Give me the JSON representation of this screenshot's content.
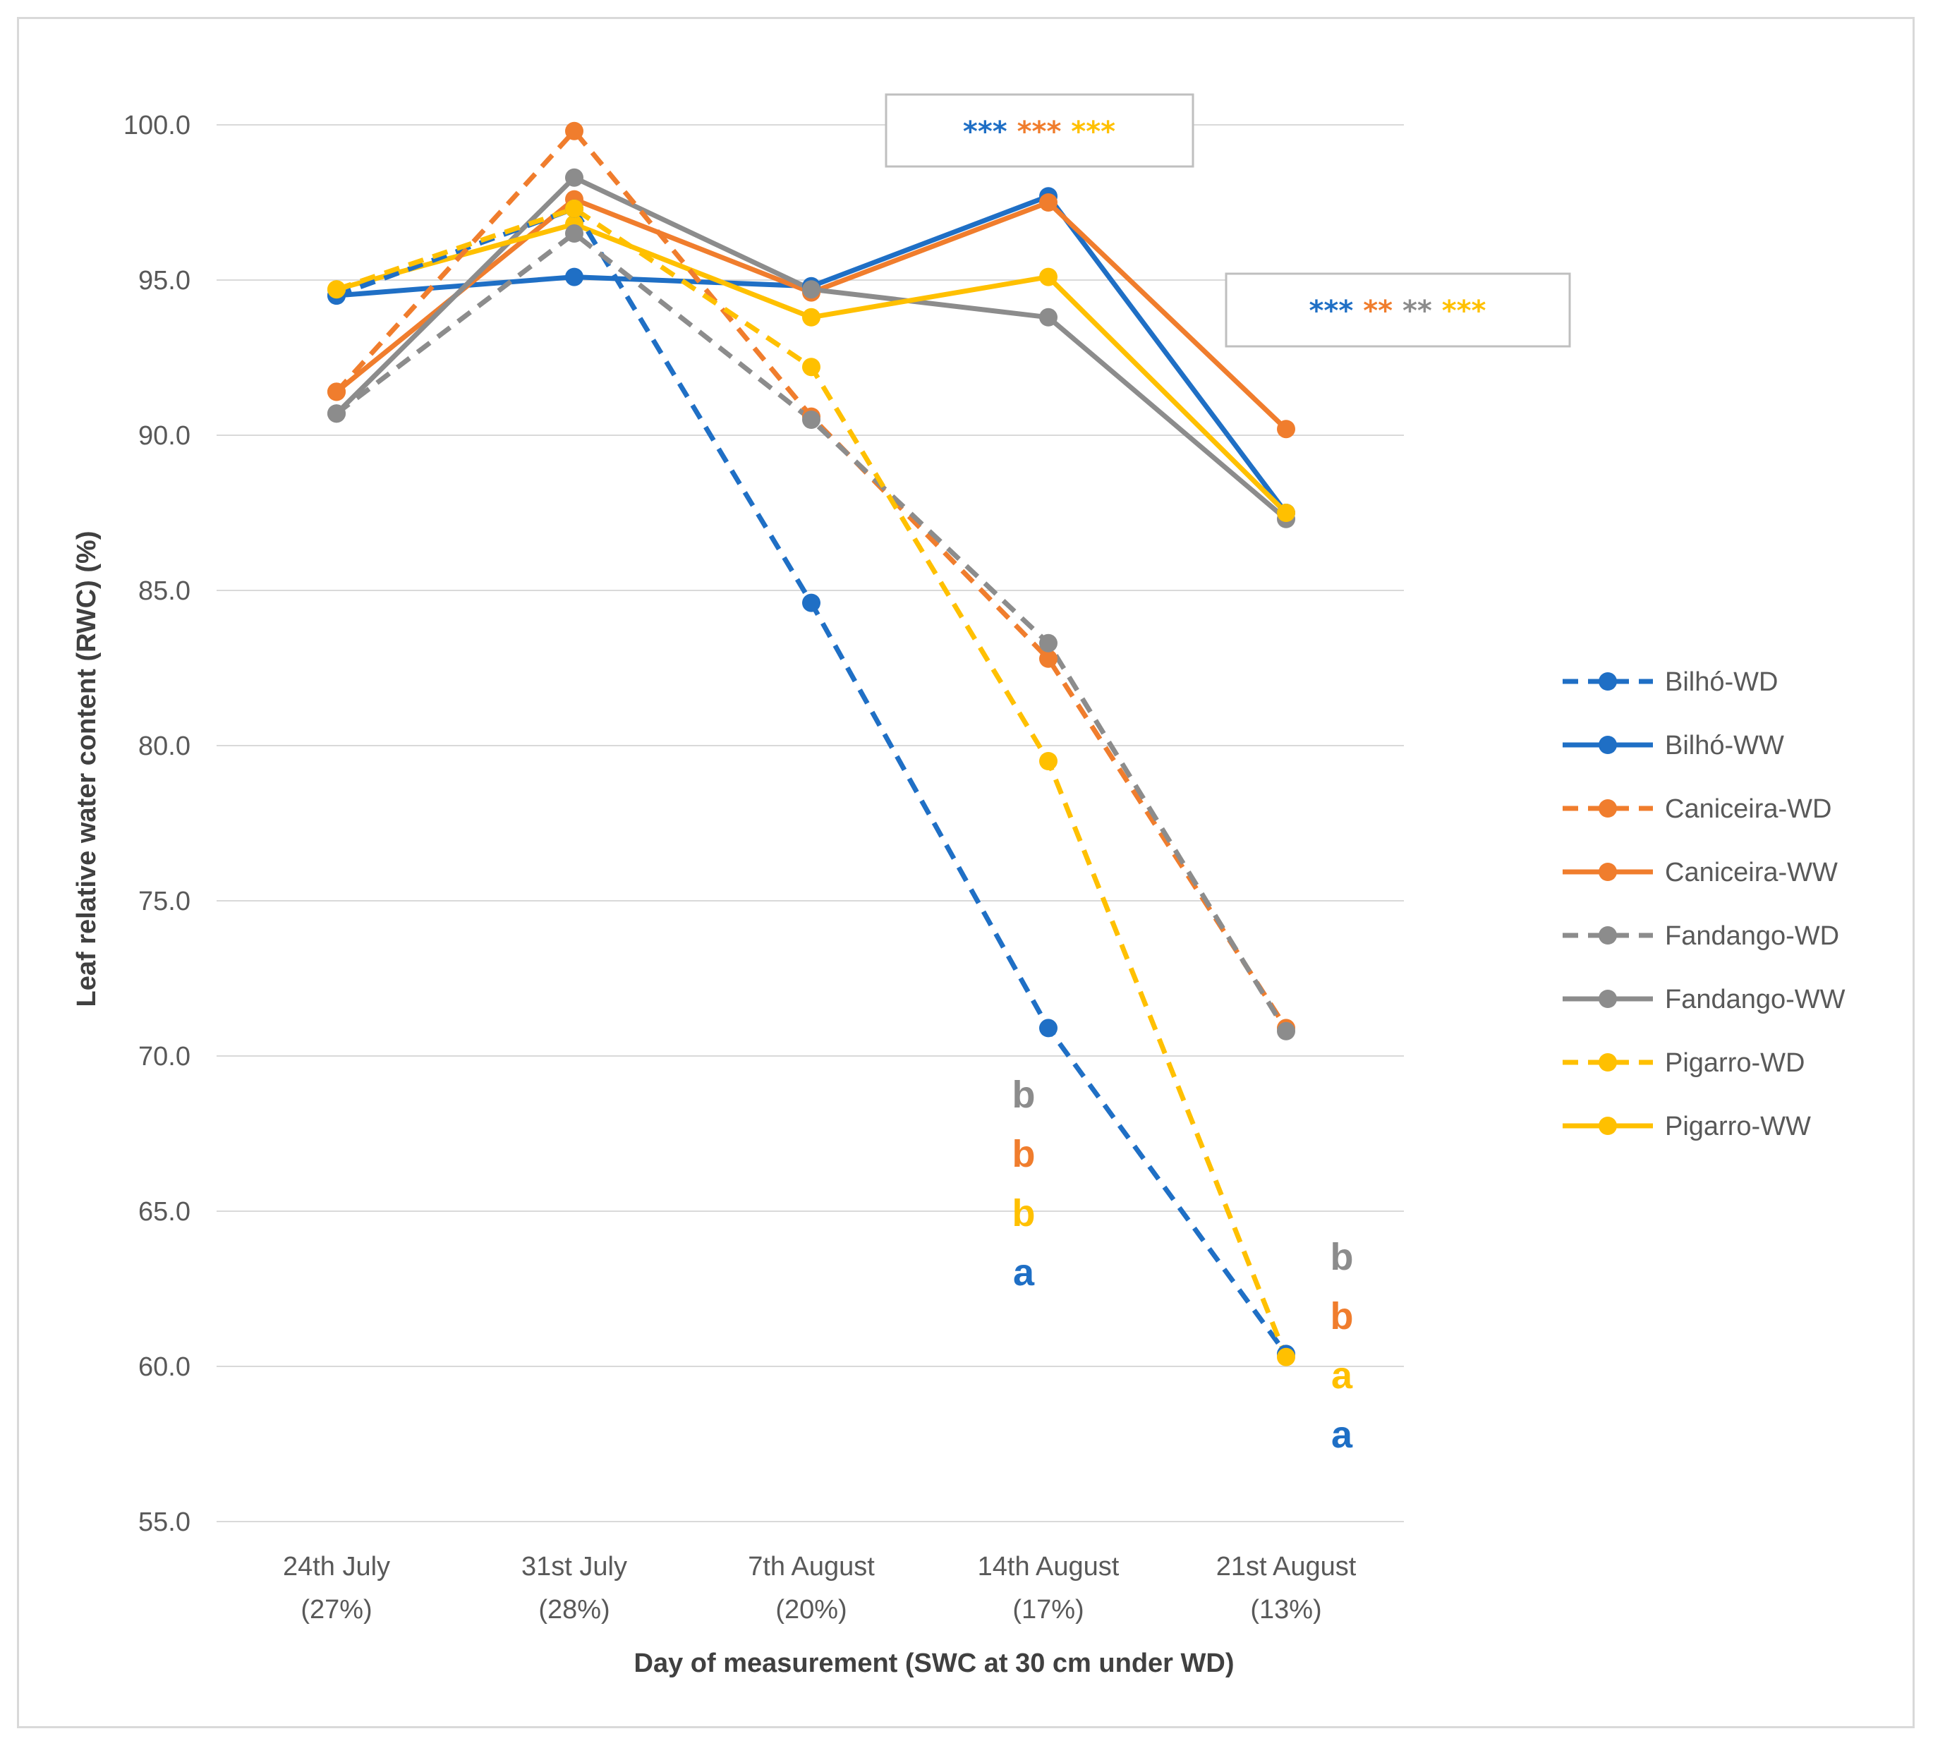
{
  "chart_data": {
    "type": "line",
    "title": "",
    "xlabel": "Day of measurement (SWC at 30 cm under WD)",
    "ylabel": "Leaf relative water content (RWC) (%)",
    "ylim": [
      55,
      100
    ],
    "y_ticks": [
      "55.0",
      "60.0",
      "65.0",
      "70.0",
      "75.0",
      "80.0",
      "85.0",
      "90.0",
      "95.0",
      "100.0"
    ],
    "y_tick_values": [
      55,
      60,
      65,
      70,
      75,
      80,
      85,
      90,
      95,
      100
    ],
    "categories": [
      {
        "line1": "24th July",
        "line2": "(27%)"
      },
      {
        "line1": "31st July",
        "line2": "(28%)"
      },
      {
        "line1": "7th August",
        "line2": "(20%)"
      },
      {
        "line1": "14th August",
        "line2": "(17%)"
      },
      {
        "line1": "21st August",
        "line2": "(13%)"
      }
    ],
    "grid": "horizontal",
    "legend_position": "right",
    "series": [
      {
        "name": "Bilhó-WD",
        "color": "#1f6fc5",
        "dashed": true,
        "values": [
          94.5,
          97.3,
          84.6,
          70.9,
          60.4
        ]
      },
      {
        "name": "Bilhó-WW",
        "color": "#1f6fc5",
        "dashed": false,
        "values": [
          94.5,
          95.1,
          94.8,
          97.7,
          87.5
        ]
      },
      {
        "name": "Caniceira-WD",
        "color": "#f07d2d",
        "dashed": true,
        "values": [
          91.4,
          99.8,
          90.6,
          82.8,
          70.9
        ]
      },
      {
        "name": "Caniceira-WW",
        "color": "#f07d2d",
        "dashed": false,
        "values": [
          91.4,
          97.6,
          94.6,
          97.5,
          90.2
        ]
      },
      {
        "name": "Fandango-WD",
        "color": "#8c8c8c",
        "dashed": true,
        "values": [
          90.7,
          96.5,
          90.5,
          83.3,
          70.8
        ]
      },
      {
        "name": "Fandango-WW",
        "color": "#8c8c8c",
        "dashed": false,
        "values": [
          90.7,
          98.3,
          94.7,
          93.8,
          87.3
        ]
      },
      {
        "name": "Pigarro-WD",
        "color": "#ffc000",
        "dashed": true,
        "values": [
          94.7,
          97.3,
          92.2,
          79.5,
          60.3
        ]
      },
      {
        "name": "Pigarro-WW",
        "color": "#ffc000",
        "dashed": false,
        "values": [
          94.7,
          96.8,
          93.8,
          95.1,
          87.5
        ]
      }
    ],
    "annotations": {
      "box1": [
        {
          "text": "***",
          "color": "#1f6fc5"
        },
        {
          "text": "***",
          "color": "#f07d2d"
        },
        {
          "text": "***",
          "color": "#ffc000"
        }
      ],
      "box2": [
        {
          "text": "***",
          "color": "#1f6fc5"
        },
        {
          "text": "**",
          "color": "#f07d2d"
        },
        {
          "text": "**",
          "color": "#8c8c8c"
        },
        {
          "text": "***",
          "color": "#ffc000"
        }
      ],
      "letters_14aug": [
        {
          "text": "b",
          "color": "#8c8c8c"
        },
        {
          "text": "b",
          "color": "#f07d2d"
        },
        {
          "text": "b",
          "color": "#ffc000"
        },
        {
          "text": "a",
          "color": "#1f6fc5"
        }
      ],
      "letters_21aug": [
        {
          "text": "b",
          "color": "#8c8c8c"
        },
        {
          "text": "b",
          "color": "#f07d2d"
        },
        {
          "text": "a",
          "color": "#ffc000"
        },
        {
          "text": "a",
          "color": "#1f6fc5"
        }
      ]
    }
  }
}
